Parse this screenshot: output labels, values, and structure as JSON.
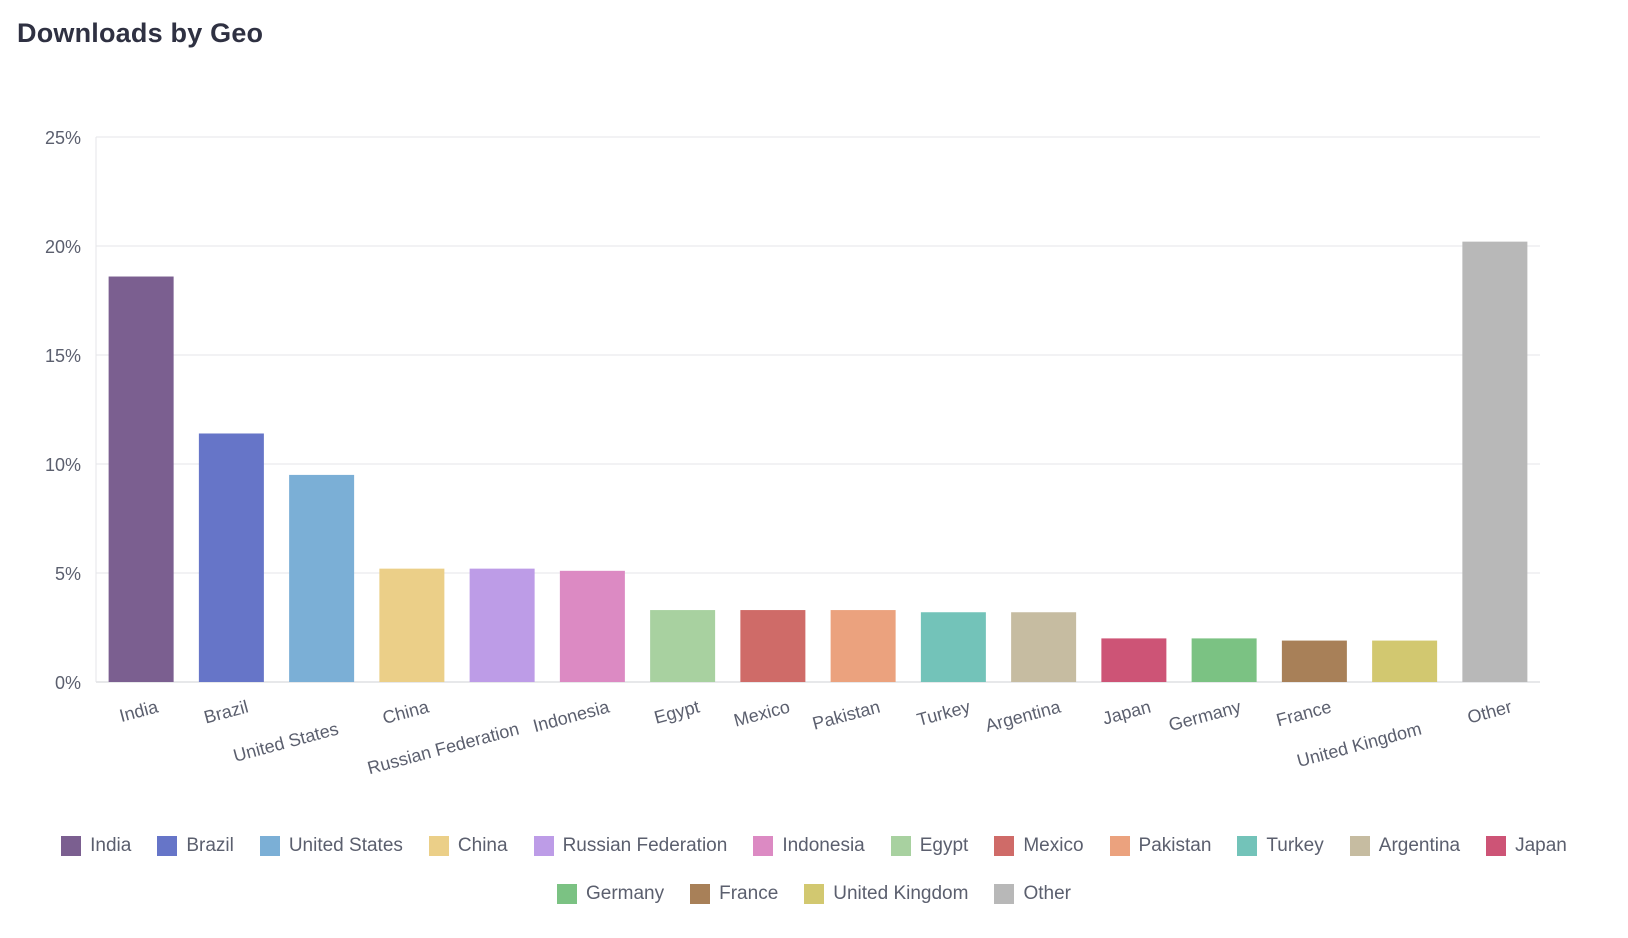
{
  "page": {
    "title": "Downloads by Geo"
  },
  "chart_data": {
    "type": "bar",
    "title": "Downloads by Geo",
    "xlabel": "",
    "ylabel": "",
    "ylim": [
      0,
      25
    ],
    "yticks": [
      "0%",
      "5%",
      "10%",
      "15%",
      "20%",
      "25%"
    ],
    "ytick_values": [
      0,
      5,
      10,
      15,
      20,
      25
    ],
    "grid": true,
    "legend": "bottom",
    "categories": [
      "India",
      "Brazil",
      "United States",
      "China",
      "Russian Federation",
      "Indonesia",
      "Egypt",
      "Mexico",
      "Pakistan",
      "Turkey",
      "Argentina",
      "Japan",
      "Germany",
      "France",
      "United Kingdom",
      "Other"
    ],
    "values": [
      18.6,
      11.4,
      9.5,
      5.2,
      5.2,
      5.1,
      3.3,
      3.3,
      3.3,
      3.2,
      3.2,
      2.0,
      2.0,
      1.9,
      1.9,
      20.2
    ],
    "colors": [
      "#7b5f90",
      "#6675c8",
      "#7bafd6",
      "#ebcf88",
      "#bd9ce7",
      "#dc8ac3",
      "#a8d1a0",
      "#cf6b68",
      "#eba27e",
      "#73c3b9",
      "#c6bca1",
      "#cd5476",
      "#7bc283",
      "#a88058",
      "#d2c870",
      "#b8b8b8"
    ]
  }
}
